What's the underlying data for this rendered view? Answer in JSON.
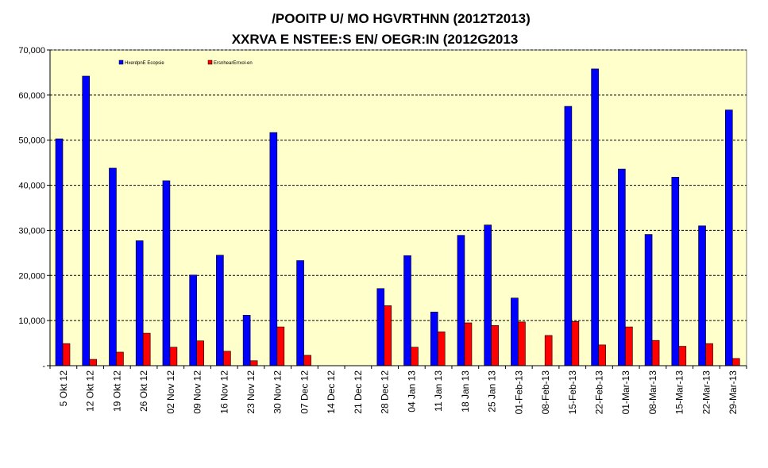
{
  "chart_data": {
    "type": "bar",
    "title": "/POOITP U/ MO HGVRTHNN (2012T2013)",
    "subtitle": "XXRVA E NSTEE:S EN/ OEGR:IN (2012G2013",
    "categories": [
      "5 Okt 12",
      "12 Okt 12",
      "19 Okt 12",
      "26 Okt 12",
      "02 Nov 12",
      "09 Nov 12",
      "16 Nov 12",
      "23 Nov 12",
      "30 Nov 12",
      "07 Dec 12",
      "14 Dec 12",
      "21 Dec 12",
      "28 Dec 12",
      "04 Jan 13",
      "11 Jan 13",
      "18 Jan 13",
      "25 Jan 13",
      "01-Feb-13",
      "08-Feb-13",
      "15-Feb-13",
      "22-Feb-13",
      "01-Mar-13",
      "08-Mar-13",
      "15-Mar-13",
      "22-Mar-13",
      "29-Mar-13"
    ],
    "series": [
      {
        "name": "HxerdpnE Ecopsie",
        "color": "#0000ff",
        "values": [
          50300,
          64200,
          43800,
          27700,
          41000,
          20100,
          24500,
          11200,
          51700,
          23300,
          0,
          0,
          17100,
          24400,
          11900,
          28900,
          31200,
          15000,
          0,
          57500,
          65800,
          43600,
          29100,
          41800,
          31000,
          56700
        ]
      },
      {
        "name": "ErsnhearErrxol-en",
        "color": "#ff0000",
        "values": [
          4900,
          1400,
          3000,
          7200,
          4100,
          5500,
          3200,
          1100,
          8600,
          2300,
          0,
          0,
          13300,
          4100,
          7500,
          9500,
          8900,
          9700,
          6700,
          9800,
          4600,
          8600,
          5600,
          4300,
          4900,
          1600
        ]
      }
    ],
    "yticks": [
      "-",
      "10,000",
      "20,000",
      "30,000",
      "40,000",
      "50,000",
      "60,000",
      "70,000"
    ],
    "ylim": [
      0,
      70000
    ],
    "ystep": 10000,
    "grid": true,
    "legend_position": "top-left",
    "plot_background": "#ffffcc",
    "xlabel": "",
    "ylabel": ""
  }
}
